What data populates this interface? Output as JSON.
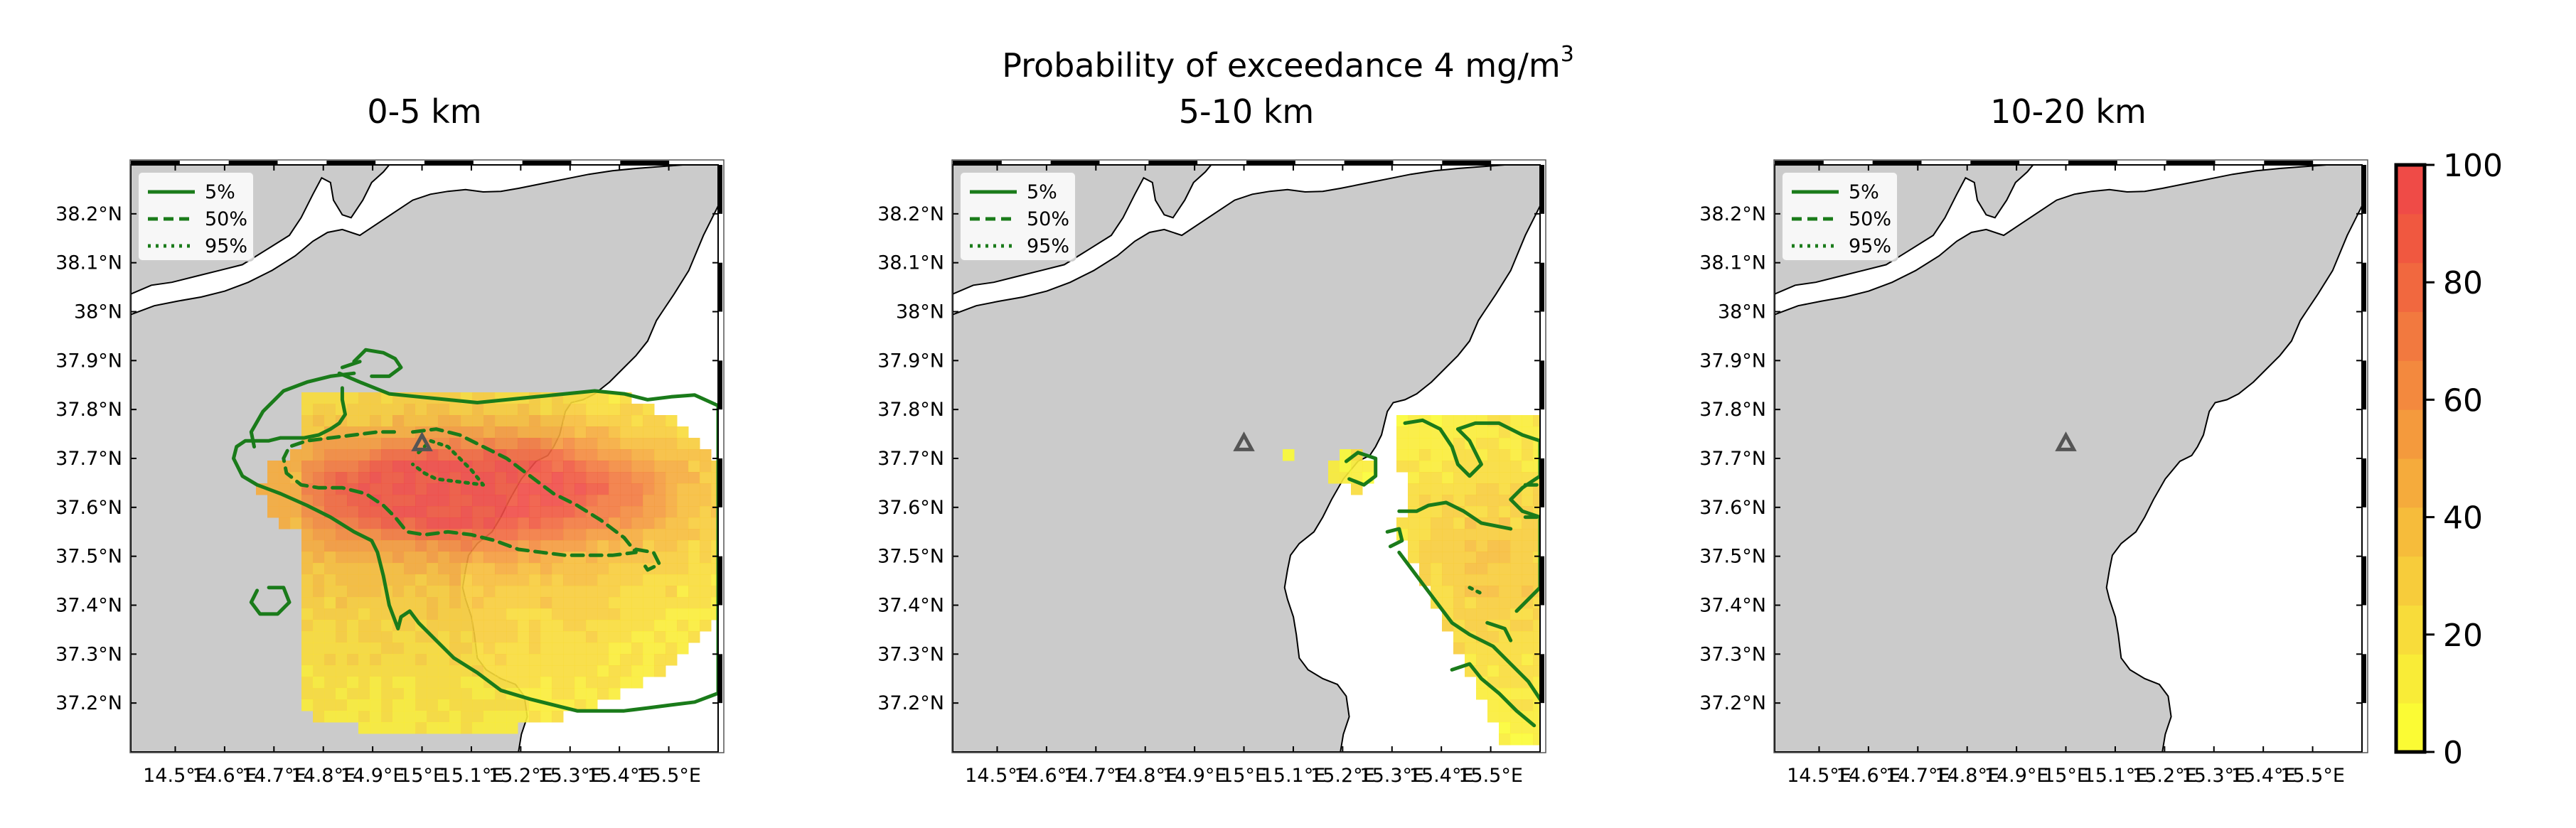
{
  "figure": {
    "title_main": "Probability of exceedance 4 mg/m",
    "title_sup": "3"
  },
  "chart_data": [
    {
      "type": "heatmap",
      "title": "0-5 km",
      "x_ticks": [
        "14.5°E",
        "14.6°E",
        "14.7°E",
        "14.8°E",
        "14.9°E",
        "15°E",
        "15.1°E",
        "15.2°E",
        "15.3°E",
        "15.4°E",
        "15.5°E"
      ],
      "y_ticks": [
        "37.2°N",
        "37.3°N",
        "37.4°N",
        "37.5°N",
        "37.6°N",
        "37.7°N",
        "37.8°N",
        "37.9°N",
        "38°N",
        "38.1°N",
        "38.2°N"
      ],
      "xlim": [
        14.41,
        15.6
      ],
      "ylim": [
        37.1,
        38.3
      ],
      "vent": {
        "lon": 15.0,
        "lat": 37.73
      },
      "legend": [
        "5%",
        "50%",
        "95%"
      ],
      "legend_loc": "upper left",
      "plume": {
        "shape": "probability field spreading east-southeast from the vent",
        "peak_percent": 85
      }
    },
    {
      "type": "heatmap",
      "title": "5-10 km",
      "x_ticks": [
        "14.5°E",
        "14.6°E",
        "14.7°E",
        "14.8°E",
        "14.9°E",
        "15°E",
        "15.1°E",
        "15.2°E",
        "15.3°E",
        "15.4°E",
        "15.5°E"
      ],
      "y_ticks": [
        "37.2°N",
        "37.3°N",
        "37.4°N",
        "37.5°N",
        "37.6°N",
        "37.7°N",
        "37.8°N",
        "37.9°N",
        "38°N",
        "38.1°N",
        "38.2°N"
      ],
      "xlim": [
        14.41,
        15.6
      ],
      "ylim": [
        37.1,
        38.3
      ],
      "vent": {
        "lon": 15.0,
        "lat": 37.73
      },
      "legend": [
        "5%",
        "50%",
        "95%"
      ],
      "legend_loc": "upper left",
      "plume": {
        "shape": "low probability field over the sea to the southeast",
        "peak_percent": 30
      }
    },
    {
      "type": "heatmap",
      "title": "10-20 km",
      "x_ticks": [
        "14.5°E",
        "14.6°E",
        "14.7°E",
        "14.8°E",
        "14.9°E",
        "15°E",
        "15.1°E",
        "15.2°E",
        "15.3°E",
        "15.4°E",
        "15.5°E"
      ],
      "y_ticks": [
        "37.2°N",
        "37.3°N",
        "37.4°N",
        "37.5°N",
        "37.6°N",
        "37.7°N",
        "37.8°N",
        "37.9°N",
        "38°N",
        "38.1°N",
        "38.2°N"
      ],
      "xlim": [
        14.41,
        15.6
      ],
      "ylim": [
        37.1,
        38.3
      ],
      "vent": {
        "lon": 15.0,
        "lat": 37.73
      },
      "legend": [
        "5%",
        "50%",
        "95%"
      ],
      "legend_loc": "upper left",
      "plume": {
        "shape": "none",
        "peak_percent": 0
      }
    }
  ],
  "colorbar": {
    "ticks": [
      "0",
      "20",
      "40",
      "60",
      "80",
      "100"
    ],
    "range": [
      0,
      100
    ],
    "colors": [
      "#fbfb34",
      "#f9ec37",
      "#f8dc3a",
      "#f7cc3b",
      "#f6bc3b",
      "#f5ab3c",
      "#f49a3d",
      "#f3893e",
      "#f2793f",
      "#f1683f",
      "#f05840",
      "#ef4b47"
    ]
  },
  "colors": {
    "land": "#cbcbcb",
    "sea": "#ffffff",
    "contour": "#1a7b1a",
    "vent": "#555555"
  }
}
